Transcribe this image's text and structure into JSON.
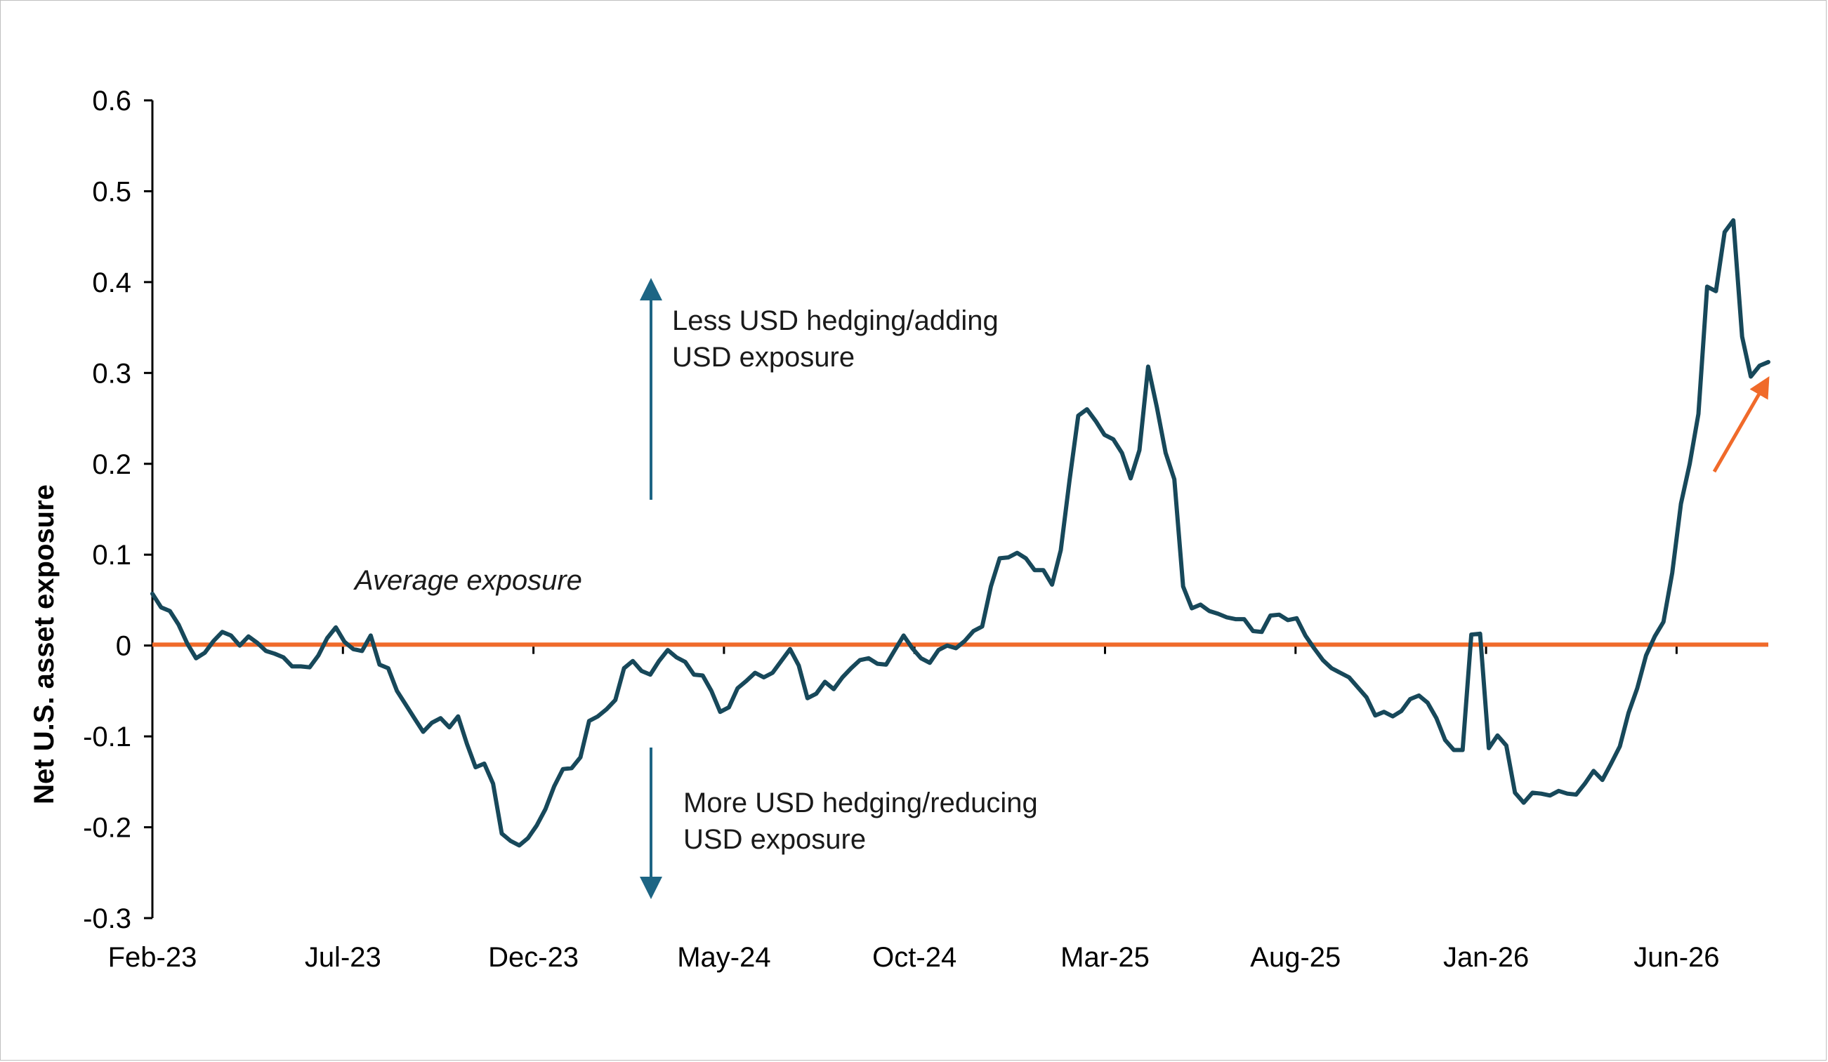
{
  "chart_data": {
    "type": "line",
    "title": "",
    "xlabel": "",
    "ylabel": "Net U.S. asset exposure",
    "ylim": [
      -0.3,
      0.6
    ],
    "yticks": [
      -0.3,
      -0.2,
      -0.1,
      0,
      0.1,
      0.2,
      0.3,
      0.4,
      0.5,
      0.6
    ],
    "ytick_labels": [
      "-0.3",
      "-0.2",
      "-0.1",
      "0",
      "0.1",
      "0.2",
      "0.3",
      "0.4",
      "0.5",
      "0.6"
    ],
    "xtick_labels": [
      "Feb-23",
      "Jul-23",
      "Dec-23",
      "May-24",
      "Oct-24",
      "Mar-25",
      "Aug-25",
      "Jan-26",
      "Jun-26"
    ],
    "grid": false,
    "legend": "none",
    "series": [
      {
        "color": "#17485a",
        "values": [
          0.057,
          0.042,
          0.038,
          0.023,
          0.002,
          -0.014,
          -0.008,
          0.005,
          0.015,
          0.011,
          0.0,
          0.01,
          0.003,
          -0.006,
          -0.009,
          -0.013,
          -0.023,
          -0.023,
          -0.024,
          -0.011,
          0.008,
          0.02,
          0.004,
          -0.004,
          -0.006,
          0.011,
          -0.021,
          -0.025,
          -0.05,
          -0.065,
          -0.08,
          -0.095,
          -0.085,
          -0.08,
          -0.09,
          -0.078,
          -0.108,
          -0.134,
          -0.13,
          -0.152,
          -0.207,
          -0.215,
          -0.22,
          -0.212,
          -0.198,
          -0.18,
          -0.155,
          -0.136,
          -0.135,
          -0.123,
          -0.083,
          -0.078,
          -0.07,
          -0.06,
          -0.025,
          -0.017,
          -0.028,
          -0.032,
          -0.017,
          -0.005,
          -0.013,
          -0.018,
          -0.032,
          -0.033,
          -0.05,
          -0.073,
          -0.068,
          -0.047,
          -0.039,
          -0.03,
          -0.035,
          -0.03,
          -0.017,
          -0.004,
          -0.022,
          -0.058,
          -0.053,
          -0.04,
          -0.048,
          -0.035,
          -0.025,
          -0.016,
          -0.014,
          -0.02,
          -0.021,
          -0.005,
          0.011,
          -0.003,
          -0.014,
          -0.019,
          -0.005,
          0.0,
          -0.003,
          0.005,
          0.016,
          0.021,
          0.065,
          0.096,
          0.097,
          0.102,
          0.096,
          0.083,
          0.083,
          0.067,
          0.105,
          0.182,
          0.253,
          0.26,
          0.247,
          0.232,
          0.227,
          0.212,
          0.184,
          0.215,
          0.307,
          0.262,
          0.212,
          0.183,
          0.065,
          0.041,
          0.045,
          0.038,
          0.035,
          0.031,
          0.029,
          0.029,
          0.016,
          0.015,
          0.033,
          0.034,
          0.028,
          0.03,
          0.011,
          -0.003,
          -0.016,
          -0.025,
          -0.03,
          -0.035,
          -0.046,
          -0.057,
          -0.077,
          -0.073,
          -0.078,
          -0.072,
          -0.059,
          -0.055,
          -0.063,
          -0.08,
          -0.104,
          -0.115,
          -0.115,
          0.012,
          0.013,
          -0.113,
          -0.099,
          -0.11,
          -0.162,
          -0.173,
          -0.162,
          -0.163,
          -0.165,
          -0.16,
          -0.163,
          -0.164,
          -0.152,
          -0.138,
          -0.148,
          -0.13,
          -0.111,
          -0.074,
          -0.047,
          -0.011,
          0.01,
          0.026,
          0.08,
          0.156,
          0.2,
          0.255,
          0.395,
          0.39,
          0.455,
          0.468,
          0.34,
          0.296,
          0.308,
          0.312
        ]
      },
      {
        "color": "#f06a2a",
        "values": [
          0.001,
          0.001
        ]
      }
    ],
    "annotations": [
      {
        "text_lines": [
          "Less USD hedging/adding",
          "USD exposure"
        ],
        "arrow": "up",
        "color": "#1d6584"
      },
      {
        "text_lines": [
          "More USD hedging/reducing",
          "USD exposure"
        ],
        "arrow": "down",
        "color": "#1d6584"
      },
      {
        "text": "Average exposure",
        "style": "italic"
      },
      {
        "arrow": "up-right",
        "color": "#f06a2a"
      }
    ]
  }
}
